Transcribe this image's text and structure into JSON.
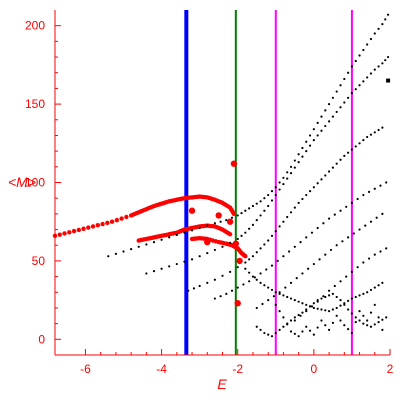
{
  "chart_data": {
    "type": "scatter",
    "title": "",
    "xlabel": "E",
    "ylabel": "<M>",
    "xlim": [
      -6.8,
      2.0
    ],
    "ylim": [
      -10,
      210
    ],
    "grid": false,
    "x_ticks": [
      "-6",
      "-4",
      "-2",
      "0",
      "2"
    ],
    "x_tick_values": [
      -6,
      -4,
      -2,
      0,
      2
    ],
    "y_ticks": [
      "0",
      "50",
      "100",
      "150",
      "200"
    ],
    "y_tick_values": [
      0,
      50,
      100,
      150,
      200
    ],
    "vertical_lines": [
      {
        "x": -3.35,
        "color": "#0000ff"
      },
      {
        "x": -2.05,
        "color": "#008000"
      },
      {
        "x": -1.0,
        "color": "#ff00ff"
      },
      {
        "x": 1.0,
        "color": "#ff00ff"
      }
    ],
    "colors": {
      "axis": "#ff0000",
      "black_points": "#000000",
      "red_points": "#ff0000"
    },
    "series": [
      {
        "color": "#ff0000",
        "points": [
          [
            -6.8,
            66
          ],
          [
            -6.3,
            69
          ],
          [
            -5.8,
            72
          ],
          [
            -5.3,
            75
          ],
          [
            -4.8,
            79
          ],
          [
            -4.6,
            81
          ],
          [
            -4.4,
            83
          ],
          [
            -4.2,
            85
          ],
          [
            -4.0,
            86.5
          ],
          [
            -3.8,
            88
          ],
          [
            -3.6,
            89
          ],
          [
            -3.4,
            90
          ],
          [
            -3.2,
            90.5
          ],
          [
            -3.0,
            91
          ],
          [
            -2.8,
            90.5
          ],
          [
            -2.6,
            89
          ],
          [
            -2.4,
            87
          ],
          [
            -2.2,
            84
          ],
          [
            -2.1,
            80
          ]
        ]
      },
      {
        "color": "#ff0000",
        "points": [
          [
            -4.6,
            63
          ],
          [
            -4.4,
            64
          ],
          [
            -4.2,
            65
          ],
          [
            -4.0,
            66
          ],
          [
            -3.8,
            67
          ],
          [
            -3.6,
            68
          ],
          [
            -3.4,
            70
          ],
          [
            -3.2,
            71
          ],
          [
            -3.0,
            72
          ],
          [
            -2.8,
            72.5
          ],
          [
            -2.6,
            72
          ],
          [
            -2.4,
            70
          ],
          [
            -2.2,
            67
          ]
        ]
      },
      {
        "color": "#ff0000",
        "points": [
          [
            -3.2,
            64
          ],
          [
            -3.0,
            64.5
          ],
          [
            -2.8,
            64
          ],
          [
            -2.5,
            62
          ],
          [
            -2.3,
            61
          ],
          [
            -2.15,
            60
          ],
          [
            -2.0,
            58
          ],
          [
            -1.9,
            55
          ],
          [
            -1.8,
            53
          ]
        ]
      },
      {
        "color": "#000000",
        "points": [
          [
            -5.4,
            53
          ],
          [
            -5.0,
            56
          ],
          [
            -4.6,
            59
          ],
          [
            -4.2,
            62
          ],
          [
            -3.8,
            65
          ],
          [
            -3.4,
            68
          ],
          [
            -3.0,
            71
          ],
          [
            -2.6,
            74
          ],
          [
            -2.3,
            76
          ],
          [
            -2.0,
            79
          ],
          [
            -1.8,
            82
          ],
          [
            -1.6,
            85
          ],
          [
            -1.4,
            88
          ],
          [
            -1.2,
            92
          ],
          [
            -1.0,
            97
          ],
          [
            -0.8,
            103
          ],
          [
            -0.6,
            110
          ],
          [
            -0.4,
            118
          ],
          [
            -0.2,
            126
          ],
          [
            0.0,
            134
          ],
          [
            0.2,
            142
          ],
          [
            0.4,
            150
          ],
          [
            0.6,
            158
          ],
          [
            0.8,
            166
          ],
          [
            1.0,
            174
          ],
          [
            1.2,
            181
          ],
          [
            1.4,
            188
          ],
          [
            1.6,
            195
          ],
          [
            1.8,
            201
          ],
          [
            1.95,
            207
          ]
        ]
      },
      {
        "color": "#000000",
        "points": [
          [
            -4.4,
            42
          ],
          [
            -4.0,
            45
          ],
          [
            -3.6,
            48
          ],
          [
            -3.2,
            51
          ],
          [
            -2.8,
            55
          ],
          [
            -2.4,
            59
          ],
          [
            -2.0,
            64
          ],
          [
            -1.8,
            68
          ],
          [
            -1.6,
            73
          ],
          [
            -1.4,
            79
          ],
          [
            -1.2,
            85
          ],
          [
            -1.0,
            92
          ],
          [
            -0.8,
            99
          ],
          [
            -0.6,
            106
          ],
          [
            -0.4,
            113
          ],
          [
            -0.2,
            120
          ],
          [
            0.0,
            127
          ],
          [
            0.2,
            133
          ],
          [
            0.4,
            139
          ],
          [
            0.6,
            145
          ],
          [
            0.8,
            151
          ],
          [
            1.0,
            157
          ],
          [
            1.2,
            162
          ],
          [
            1.4,
            167
          ],
          [
            1.6,
            172
          ],
          [
            1.8,
            176
          ],
          [
            1.95,
            180
          ]
        ]
      },
      {
        "color": "#000000",
        "points": [
          [
            -3.3,
            31
          ],
          [
            -3.0,
            34
          ],
          [
            -2.6,
            38
          ],
          [
            -2.2,
            43
          ],
          [
            -1.8,
            49
          ],
          [
            -1.6,
            53
          ],
          [
            -1.4,
            58
          ],
          [
            -1.2,
            63
          ],
          [
            -1.0,
            69
          ],
          [
            -0.8,
            75
          ],
          [
            -0.6,
            81
          ],
          [
            -0.4,
            87
          ],
          [
            -0.2,
            92
          ],
          [
            0.0,
            97
          ],
          [
            0.2,
            102
          ],
          [
            0.4,
            107
          ],
          [
            0.6,
            112
          ],
          [
            0.8,
            117
          ],
          [
            1.0,
            121
          ],
          [
            1.2,
            125
          ],
          [
            1.4,
            129
          ],
          [
            1.6,
            132
          ],
          [
            1.8,
            135
          ]
        ]
      },
      {
        "color": "#000000",
        "points": [
          [
            -2.6,
            26
          ],
          [
            -2.3,
            29
          ],
          [
            -2.0,
            33
          ],
          [
            -1.7,
            37
          ],
          [
            -1.4,
            42
          ],
          [
            -1.1,
            47
          ],
          [
            -0.8,
            53
          ],
          [
            -0.5,
            59
          ],
          [
            -0.2,
            65
          ],
          [
            0.1,
            71
          ],
          [
            0.4,
            77
          ],
          [
            0.7,
            82
          ],
          [
            1.0,
            87
          ],
          [
            1.3,
            92
          ],
          [
            1.6,
            96
          ],
          [
            1.9,
            100
          ]
        ]
      },
      {
        "color": "#000000",
        "points": [
          [
            -1.5,
            20
          ],
          [
            -1.2,
            25
          ],
          [
            -0.9,
            30
          ],
          [
            -0.6,
            36
          ],
          [
            -0.3,
            42
          ],
          [
            0.0,
            48
          ],
          [
            0.3,
            54
          ],
          [
            0.6,
            60
          ],
          [
            0.9,
            65
          ],
          [
            1.2,
            70
          ],
          [
            1.5,
            75
          ],
          [
            1.8,
            80
          ]
        ]
      },
      {
        "color": "#000000",
        "points": [
          [
            -0.5,
            12
          ],
          [
            -0.2,
            18
          ],
          [
            0.1,
            24
          ],
          [
            0.4,
            31
          ],
          [
            0.7,
            37
          ],
          [
            1.0,
            43
          ],
          [
            1.3,
            49
          ],
          [
            1.6,
            54
          ],
          [
            1.9,
            58
          ]
        ]
      },
      {
        "color": "#000000",
        "points": [
          [
            -1.8,
            45
          ],
          [
            -1.6,
            40
          ],
          [
            -1.4,
            36
          ],
          [
            -1.2,
            33
          ],
          [
            -1.0,
            30
          ],
          [
            -0.8,
            28
          ],
          [
            -0.6,
            26
          ],
          [
            -0.4,
            24
          ],
          [
            -0.2,
            22
          ],
          [
            0.0,
            20
          ],
          [
            0.2,
            19
          ],
          [
            0.4,
            18
          ],
          [
            0.6,
            20
          ],
          [
            0.8,
            23
          ],
          [
            1.0,
            26
          ],
          [
            1.2,
            28
          ],
          [
            1.4,
            30
          ],
          [
            1.6,
            33
          ],
          [
            1.8,
            36
          ]
        ]
      },
      {
        "color": "#000000",
        "points": [
          [
            -1.5,
            8
          ],
          [
            -1.3,
            4
          ],
          [
            -1.1,
            2
          ],
          [
            -0.9,
            6
          ],
          [
            -0.7,
            10
          ],
          [
            -0.5,
            14
          ],
          [
            -0.3,
            17
          ],
          [
            -0.1,
            21
          ],
          [
            0.1,
            25
          ],
          [
            0.3,
            27
          ],
          [
            0.5,
            29
          ],
          [
            0.7,
            25
          ],
          [
            0.9,
            19
          ],
          [
            1.1,
            14
          ],
          [
            1.3,
            10
          ],
          [
            1.5,
            8
          ],
          [
            1.7,
            11
          ],
          [
            1.9,
            14
          ]
        ]
      },
      {
        "color": "#000000",
        "points": [
          [
            -1.0,
            22
          ],
          [
            -0.8,
            14
          ],
          [
            -0.6,
            5
          ],
          [
            -0.4,
            2
          ],
          [
            -0.2,
            8
          ],
          [
            0.0,
            3
          ],
          [
            0.2,
            12
          ],
          [
            0.4,
            6
          ],
          [
            0.6,
            15
          ],
          [
            0.8,
            9
          ],
          [
            1.0,
            4
          ],
          [
            1.2,
            18
          ],
          [
            1.4,
            12
          ],
          [
            1.6,
            22
          ],
          [
            1.8,
            6
          ]
        ]
      }
    ],
    "red_markers": [
      {
        "x": -3.2,
        "y": 82
      },
      {
        "x": -2.5,
        "y": 79
      },
      {
        "x": -2.2,
        "y": 75
      },
      {
        "x": -2.05,
        "y": 61
      },
      {
        "x": -2.0,
        "y": 23
      },
      {
        "x": -2.1,
        "y": 112
      },
      {
        "x": -2.8,
        "y": 62
      },
      {
        "x": -1.95,
        "y": 50
      }
    ],
    "other_values": [
      {
        "x": 1.95,
        "y": 165
      }
    ]
  }
}
